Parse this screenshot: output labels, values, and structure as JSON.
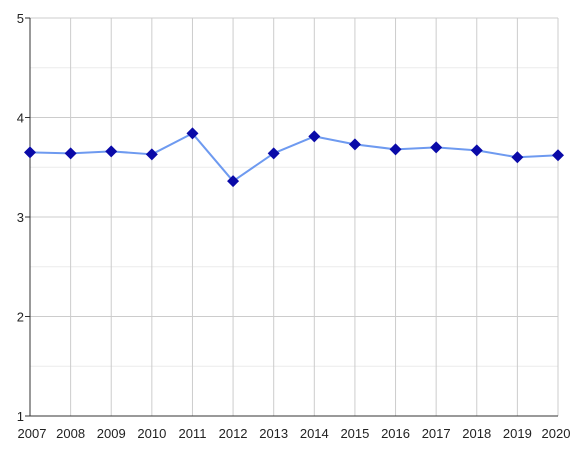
{
  "chart_data": {
    "type": "line",
    "title": "",
    "xlabel": "",
    "ylabel": "",
    "x": [
      "2007",
      "2008",
      "2009",
      "2010",
      "2011",
      "2012",
      "2013",
      "2014",
      "2015",
      "2016",
      "2017",
      "2018",
      "2019",
      "2020"
    ],
    "series": [
      {
        "values": [
          3.65,
          3.64,
          3.66,
          3.63,
          3.84,
          3.36,
          3.64,
          3.81,
          3.73,
          3.68,
          3.7,
          3.67,
          3.6,
          3.62
        ]
      }
    ],
    "ylim": [
      1,
      5
    ],
    "y_ticks": [
      "1",
      "2",
      "3",
      "4",
      "5"
    ],
    "grid": true,
    "legend": "none",
    "colors": {
      "line": "#6e9af0",
      "marker": "#0a0aa8",
      "grid_major": "#cccccc",
      "grid_minor": "#ececec",
      "axis": "#333333",
      "text": "#222222"
    },
    "marker": "diamond-icon"
  }
}
